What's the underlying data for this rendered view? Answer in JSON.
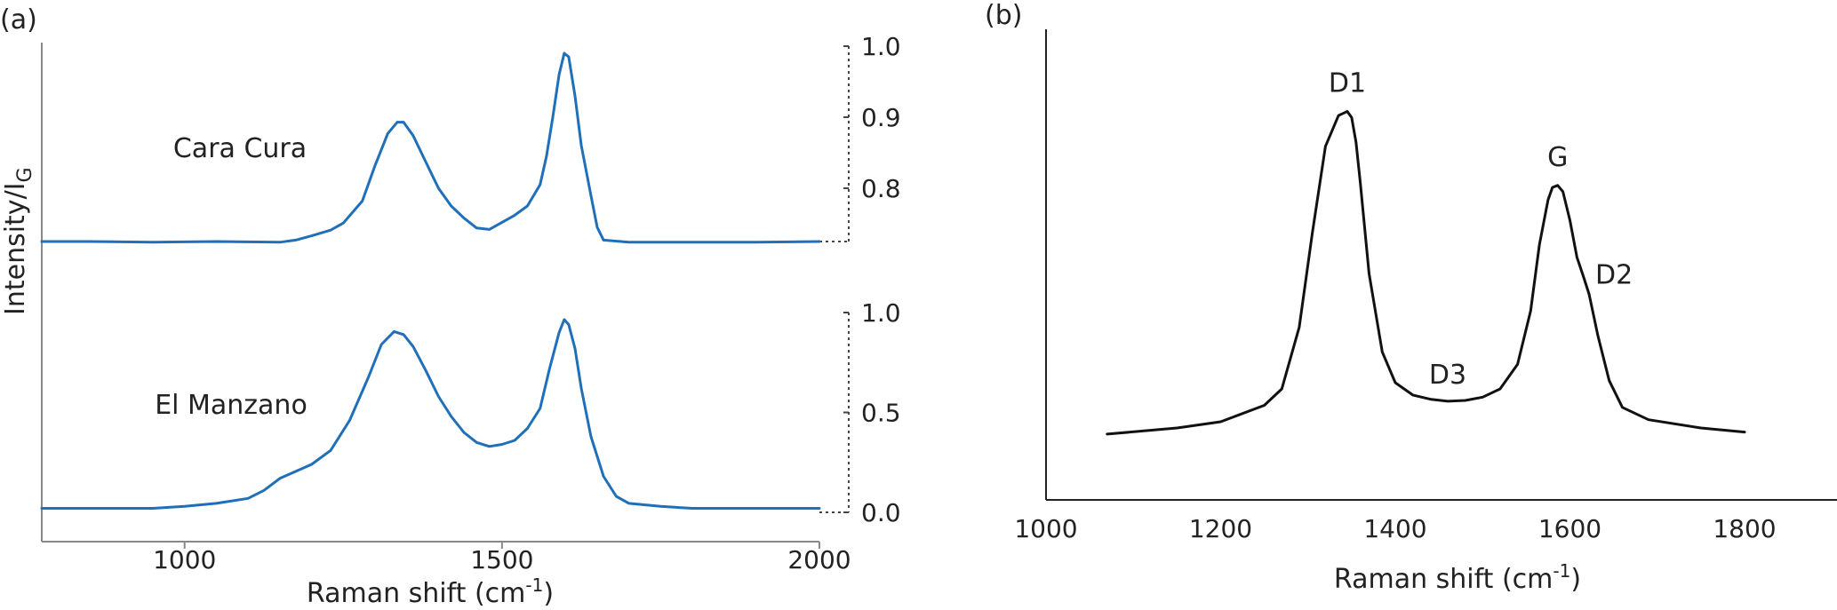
{
  "chart_data": [
    {
      "type": "line",
      "panel_label": "(a)",
      "title": "",
      "xlabel": "Raman shift (cm",
      "xlabel_sup": "-1",
      "xlabel_end": ")",
      "ylabel": "Intensity/I",
      "ylabel_sub": "G",
      "xlim": [
        775,
        2000
      ],
      "xticks": [
        "1000",
        "1500",
        "2000"
      ],
      "xtick_values": [
        1000,
        1500,
        2000
      ],
      "grid": false,
      "line_color": "#1f6fba",
      "series": [
        {
          "name": "Cara Cura",
          "right_axis_ticks": [
            "1.0",
            "0.9",
            "0.8"
          ],
          "right_axis_tick_values": [
            1.0,
            0.9,
            0.8
          ],
          "ylim": [
            0.725,
            1.0
          ],
          "x": [
            775,
            850,
            950,
            1050,
            1150,
            1175,
            1200,
            1230,
            1250,
            1280,
            1300,
            1320,
            1335,
            1345,
            1360,
            1380,
            1400,
            1420,
            1440,
            1460,
            1480,
            1500,
            1520,
            1540,
            1560,
            1570,
            1580,
            1590,
            1598,
            1605,
            1615,
            1625,
            1640,
            1650,
            1660,
            1700,
            1800,
            1900,
            2000
          ],
          "y": [
            0.725,
            0.725,
            0.724,
            0.725,
            0.724,
            0.727,
            0.733,
            0.741,
            0.751,
            0.782,
            0.832,
            0.877,
            0.893,
            0.893,
            0.874,
            0.837,
            0.8,
            0.775,
            0.758,
            0.744,
            0.742,
            0.752,
            0.762,
            0.775,
            0.805,
            0.845,
            0.9,
            0.96,
            0.99,
            0.985,
            0.93,
            0.86,
            0.79,
            0.745,
            0.727,
            0.724,
            0.724,
            0.724,
            0.725
          ]
        },
        {
          "name": "El Manzano",
          "right_axis_ticks": [
            "1.0",
            "0.5",
            "0.0"
          ],
          "right_axis_tick_values": [
            1.0,
            0.5,
            0.0
          ],
          "ylim": [
            0.0,
            1.0
          ],
          "x": [
            775,
            850,
            950,
            1000,
            1050,
            1100,
            1125,
            1150,
            1200,
            1230,
            1260,
            1290,
            1310,
            1330,
            1345,
            1360,
            1380,
            1400,
            1420,
            1440,
            1460,
            1480,
            1500,
            1520,
            1540,
            1560,
            1575,
            1590,
            1598,
            1605,
            1615,
            1625,
            1640,
            1660,
            1680,
            1700,
            1750,
            1800,
            1900,
            2000
          ],
          "y": [
            0.02,
            0.02,
            0.02,
            0.03,
            0.045,
            0.07,
            0.11,
            0.17,
            0.24,
            0.31,
            0.46,
            0.68,
            0.84,
            0.905,
            0.89,
            0.83,
            0.71,
            0.58,
            0.48,
            0.4,
            0.35,
            0.33,
            0.34,
            0.36,
            0.42,
            0.52,
            0.72,
            0.9,
            0.965,
            0.94,
            0.82,
            0.62,
            0.38,
            0.18,
            0.08,
            0.045,
            0.03,
            0.02,
            0.02,
            0.02
          ]
        }
      ]
    },
    {
      "type": "line",
      "panel_label": "(b)",
      "title": "",
      "xlabel": "Raman shift (cm",
      "xlabel_sup": "-1",
      "xlabel_end": ")",
      "ylabel": "",
      "xlim": [
        1000,
        1900
      ],
      "xticks": [
        "1000",
        "1200",
        "1400",
        "1600",
        "1800"
      ],
      "xtick_values": [
        1000,
        1200,
        1400,
        1600,
        1800
      ],
      "ylim": [
        0,
        1.0
      ],
      "grid": false,
      "line_color": "#111111",
      "series": [
        {
          "x": [
            1070,
            1150,
            1200,
            1250,
            1270,
            1290,
            1305,
            1320,
            1335,
            1340,
            1345,
            1350,
            1355,
            1360,
            1370,
            1385,
            1400,
            1420,
            1440,
            1460,
            1480,
            1500,
            1520,
            1540,
            1555,
            1565,
            1575,
            1580,
            1586,
            1592,
            1600,
            1608,
            1616,
            1622,
            1632,
            1645,
            1660,
            1690,
            1750,
            1800
          ],
          "y": [
            0.16,
            0.175,
            0.19,
            0.23,
            0.27,
            0.42,
            0.65,
            0.86,
            0.935,
            0.94,
            0.945,
            0.93,
            0.87,
            0.77,
            0.55,
            0.36,
            0.285,
            0.255,
            0.245,
            0.24,
            0.242,
            0.25,
            0.27,
            0.33,
            0.46,
            0.62,
            0.73,
            0.76,
            0.765,
            0.75,
            0.68,
            0.59,
            0.54,
            0.5,
            0.4,
            0.29,
            0.225,
            0.195,
            0.175,
            0.165
          ]
        }
      ],
      "annotations": [
        {
          "text": "D1",
          "x": 1345,
          "y": 0.945
        },
        {
          "text": "D3",
          "x": 1460,
          "y": 0.24
        },
        {
          "text": "G",
          "x": 1586,
          "y": 0.765
        },
        {
          "text": "D2",
          "x": 1622,
          "y": 0.5
        }
      ]
    }
  ]
}
